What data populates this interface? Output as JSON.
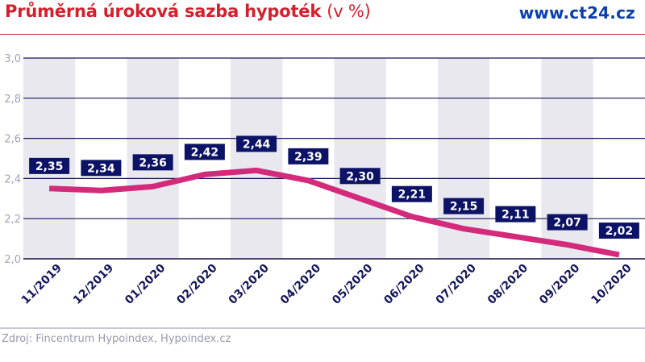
{
  "header": {
    "title": "Průměrná úroková sazba hypoték",
    "title_unit": "(v %)",
    "brand": "www.ct24.cz"
  },
  "footer": {
    "source": "Zdroj: Fincentrum Hypoindex, Hypoindex.cz"
  },
  "colors": {
    "title": "#d4202c",
    "brand": "#0b3fae",
    "line": "#d42a7c",
    "label_bg": "#0c1265",
    "gridline": "#14165a",
    "band": "#e8e8ee"
  },
  "chart_data": {
    "type": "line",
    "title": "Průměrná úroková sazba hypoték (v %)",
    "xlabel": "",
    "ylabel": "",
    "categories": [
      "11/2019",
      "12/2019",
      "01/2020",
      "02/2020",
      "03/2020",
      "04/2020",
      "05/2020",
      "06/2020",
      "07/2020",
      "08/2020",
      "09/2020",
      "10/2020"
    ],
    "series": [
      {
        "name": "Průměrná úroková sazba hypoték",
        "values": [
          2.35,
          2.34,
          2.36,
          2.42,
          2.44,
          2.39,
          2.3,
          2.21,
          2.15,
          2.11,
          2.07,
          2.02
        ]
      }
    ],
    "value_labels": [
      "2,35",
      "2,34",
      "2,36",
      "2,42",
      "2,44",
      "2,39",
      "2,30",
      "2,21",
      "2,15",
      "2,11",
      "2,07",
      "2,02"
    ],
    "yticks": [
      "2,0",
      "2,2",
      "2,4",
      "2,6",
      "2,8",
      "3,0"
    ],
    "ylim": [
      2.0,
      3.0
    ],
    "grid": true,
    "legend": "none"
  }
}
